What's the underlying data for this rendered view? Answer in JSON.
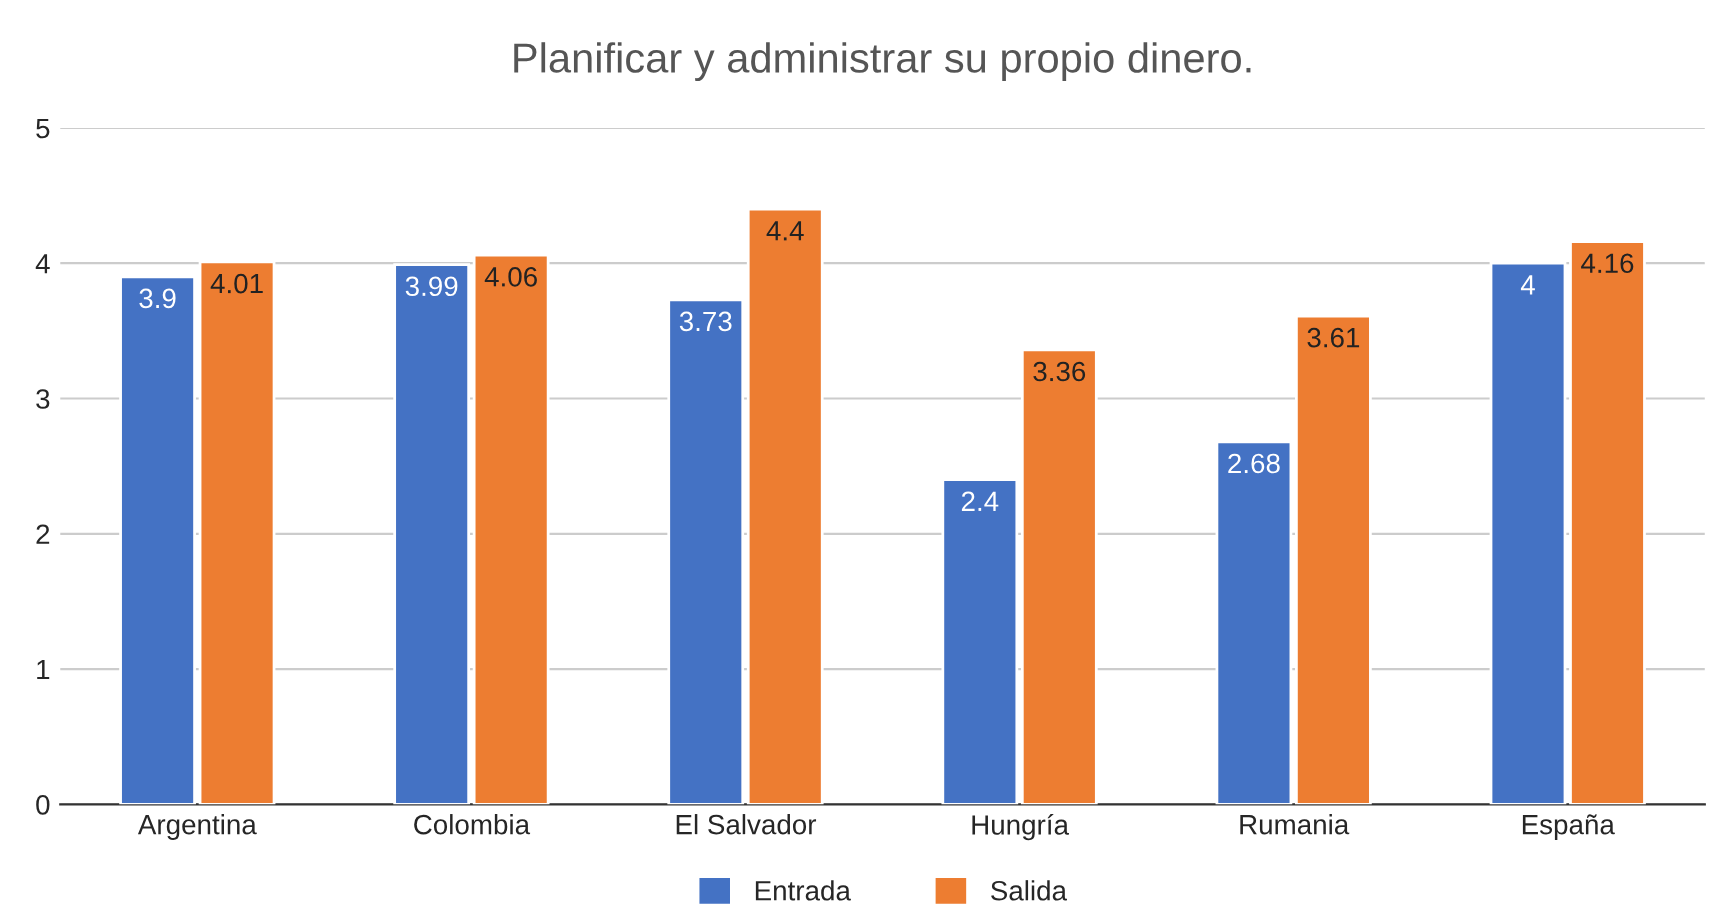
{
  "chart_data": {
    "type": "bar",
    "title": "Planificar y administrar su propio dinero.",
    "categories": [
      "Argentina",
      "Colombia",
      "El Salvador",
      "Hungría",
      "Rumania",
      "España"
    ],
    "series": [
      {
        "name": "Entrada",
        "color": "#4472c4",
        "values": [
          3.9,
          3.99,
          3.73,
          2.4,
          2.68,
          4
        ]
      },
      {
        "name": "Salida",
        "color": "#ed7d31",
        "values": [
          4.01,
          4.06,
          4.4,
          3.36,
          3.61,
          4.16
        ]
      }
    ],
    "ylim": [
      0,
      5
    ],
    "yticks": [
      0,
      1,
      2,
      3,
      4,
      5
    ],
    "grid": "y",
    "legend": "bottom",
    "data_labels": true
  }
}
